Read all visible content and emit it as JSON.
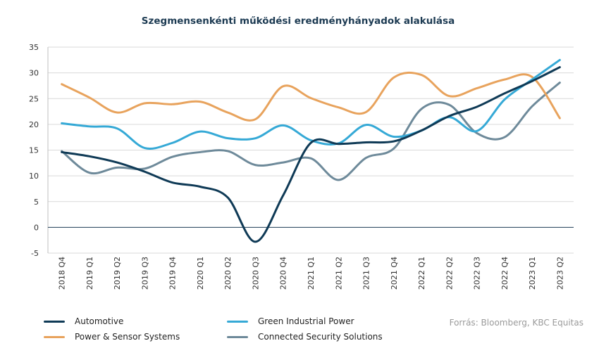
{
  "chart_data": {
    "type": "line",
    "title": "Szegmensenkénti működési eredményhányadok alakulása",
    "source": "Forrás: Bloomberg, KBC Equitas",
    "x": [
      "2018 Q4",
      "2019 Q1",
      "2019 Q2",
      "2019 Q3",
      "2019 Q4",
      "2020 Q1",
      "2020 Q2",
      "2020 Q3",
      "2020 Q4",
      "2021 Q1",
      "2021 Q2",
      "2021 Q3",
      "2021 Q4",
      "2022 Q1",
      "2022 Q2",
      "2022 Q3",
      "2022 Q4",
      "2023 Q1",
      "2023 Q2"
    ],
    "ylim": [
      -5,
      35
    ],
    "yticks": [
      -5,
      0,
      5,
      10,
      15,
      20,
      25,
      30,
      35
    ],
    "grid": true,
    "legend_position": "bottom",
    "series": [
      {
        "name": "Automotive",
        "color": "#0f3a56",
        "values": [
          14.6,
          13.8,
          12.6,
          10.8,
          8.7,
          7.9,
          5.8,
          -2.8,
          6.2,
          16.4,
          16.2,
          16.5,
          16.7,
          18.8,
          21.6,
          23.4,
          26.0,
          28.4,
          31.1
        ]
      },
      {
        "name": "Green Industrial Power",
        "color": "#35a9d6",
        "values": [
          20.2,
          19.6,
          19.2,
          15.4,
          16.4,
          18.6,
          17.3,
          17.3,
          19.8,
          16.9,
          16.3,
          19.9,
          17.6,
          18.8,
          21.4,
          18.7,
          24.8,
          28.7,
          32.5
        ]
      },
      {
        "name": "Power & Sensor Systems",
        "color": "#e8a35d",
        "values": [
          27.8,
          25.2,
          22.3,
          24.1,
          23.9,
          24.4,
          22.3,
          21.0,
          27.4,
          25.1,
          23.3,
          22.4,
          29.1,
          29.6,
          25.5,
          27.0,
          28.7,
          29.2,
          21.2
        ]
      },
      {
        "name": "Connected Security Solutions",
        "color": "#6e8a9a",
        "values": [
          14.8,
          10.6,
          11.6,
          11.4,
          13.7,
          14.6,
          14.8,
          12.1,
          12.6,
          13.4,
          9.2,
          13.5,
          15.3,
          23.0,
          23.8,
          18.3,
          17.5,
          23.5,
          28.1
        ]
      }
    ]
  }
}
